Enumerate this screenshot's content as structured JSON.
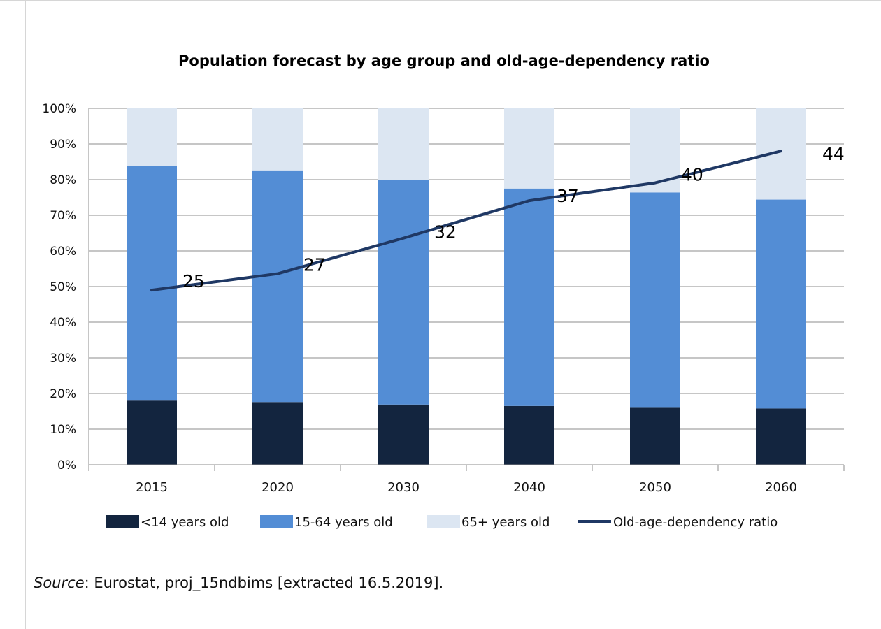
{
  "chart_data": {
    "type": "bar",
    "stacked": true,
    "title": "Population forecast by age group and old-age-dependency ratio",
    "categories": [
      "2015",
      "2020",
      "2030",
      "2040",
      "2050",
      "2060"
    ],
    "series": [
      {
        "name": "<14 years old",
        "type": "bar",
        "color": "#13253f",
        "values": [
          18.0,
          17.6,
          16.9,
          16.5,
          16.0,
          15.8
        ]
      },
      {
        "name": "15-64 years old",
        "type": "bar",
        "color": "#538dd5",
        "values": [
          65.9,
          65.0,
          63.0,
          61.0,
          60.4,
          58.6
        ]
      },
      {
        "name": "65+ years old",
        "type": "bar",
        "color": "#dce6f2",
        "values": [
          16.1,
          17.4,
          20.1,
          22.5,
          23.6,
          25.6
        ]
      },
      {
        "name": "Old-age-dependency ratio",
        "type": "line",
        "color": "#1f3864",
        "values": [
          25,
          27,
          32,
          37,
          40,
          44
        ],
        "plotted_percent": [
          49.0,
          53.6,
          63.6,
          74.1,
          79.1,
          88.0
        ]
      }
    ],
    "yaxis": {
      "min": 0,
      "max": 100,
      "step": 10,
      "tick_labels": [
        "0%",
        "10%",
        "20%",
        "30%",
        "40%",
        "50%",
        "60%",
        "70%",
        "80%",
        "90%",
        "100%"
      ]
    },
    "grid": true,
    "legend": "bottom"
  },
  "source": {
    "label": "Source",
    "text": ": Eurostat, proj_15ndbims [extracted 16.5.2019]."
  }
}
